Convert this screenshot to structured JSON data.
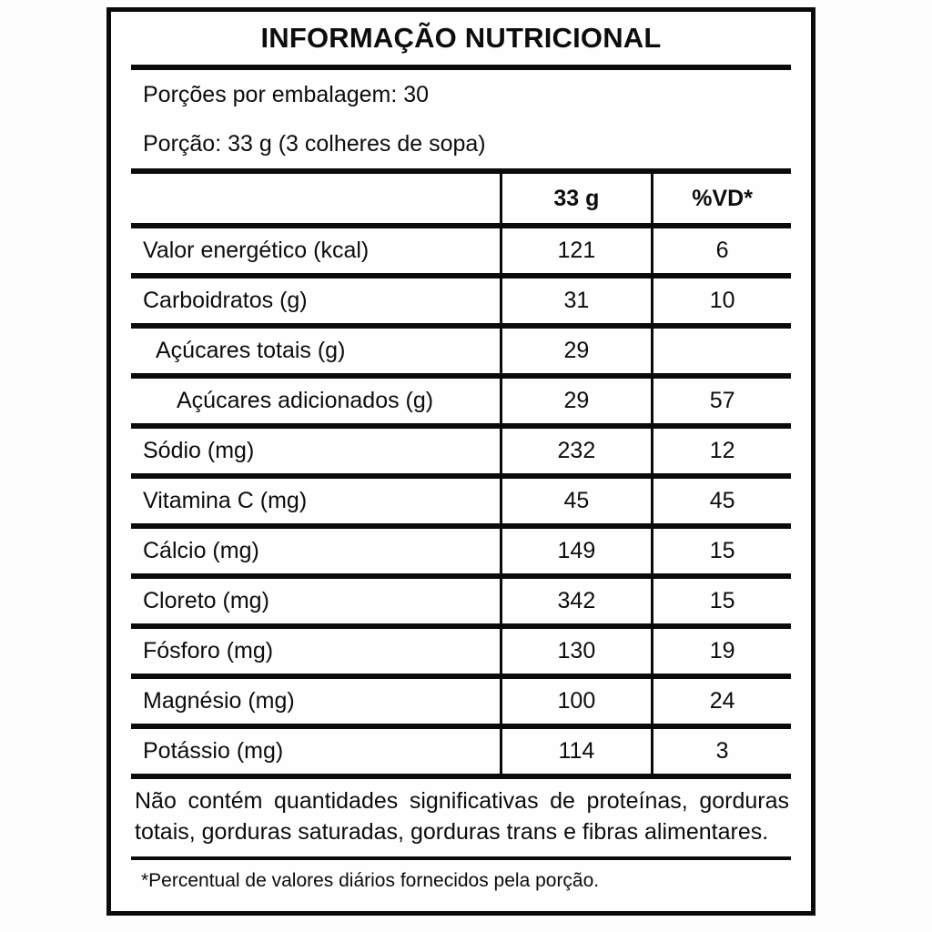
{
  "label": {
    "title": "INFORMAÇÃO NUTRICIONAL",
    "servings_per_package": "Porções por embalagem: 30",
    "serving_size": "Porção: 33 g (3 colheres de sopa)",
    "columns": [
      "",
      "33 g",
      "%VD*"
    ],
    "rows": [
      {
        "name": "Valor energético (kcal)",
        "amount": "121",
        "vd": "6",
        "indent": 0
      },
      {
        "name": "Carboidratos (g)",
        "amount": "31",
        "vd": "10",
        "indent": 0
      },
      {
        "name": "Açúcares totais (g)",
        "amount": "29",
        "vd": "",
        "indent": 1
      },
      {
        "name": "Açúcares adicionados (g)",
        "amount": "29",
        "vd": "57",
        "indent": 2
      },
      {
        "name": "Sódio (mg)",
        "amount": "232",
        "vd": "12",
        "indent": 0
      },
      {
        "name": "Vitamina C (mg)",
        "amount": "45",
        "vd": "45",
        "indent": 0
      },
      {
        "name": "Cálcio (mg)",
        "amount": "149",
        "vd": "15",
        "indent": 0
      },
      {
        "name": "Cloreto (mg)",
        "amount": "342",
        "vd": "15",
        "indent": 0
      },
      {
        "name": "Fósforo (mg)",
        "amount": "130",
        "vd": "19",
        "indent": 0
      },
      {
        "name": "Magnésio (mg)",
        "amount": "100",
        "vd": "24",
        "indent": 0
      },
      {
        "name": "Potássio (mg)",
        "amount": "114",
        "vd": "3",
        "indent": 0
      }
    ],
    "no_significant_note": "Não contém quantidades significativas de proteínas, gorduras totais, gorduras saturadas, gorduras trans e fibras alimentares.",
    "footnote": "*Percentual de valores diários fornecidos pela porção.",
    "colors": {
      "border": "#0b0b0b",
      "text": "#0d0d0d",
      "background": "#fefefe"
    }
  }
}
